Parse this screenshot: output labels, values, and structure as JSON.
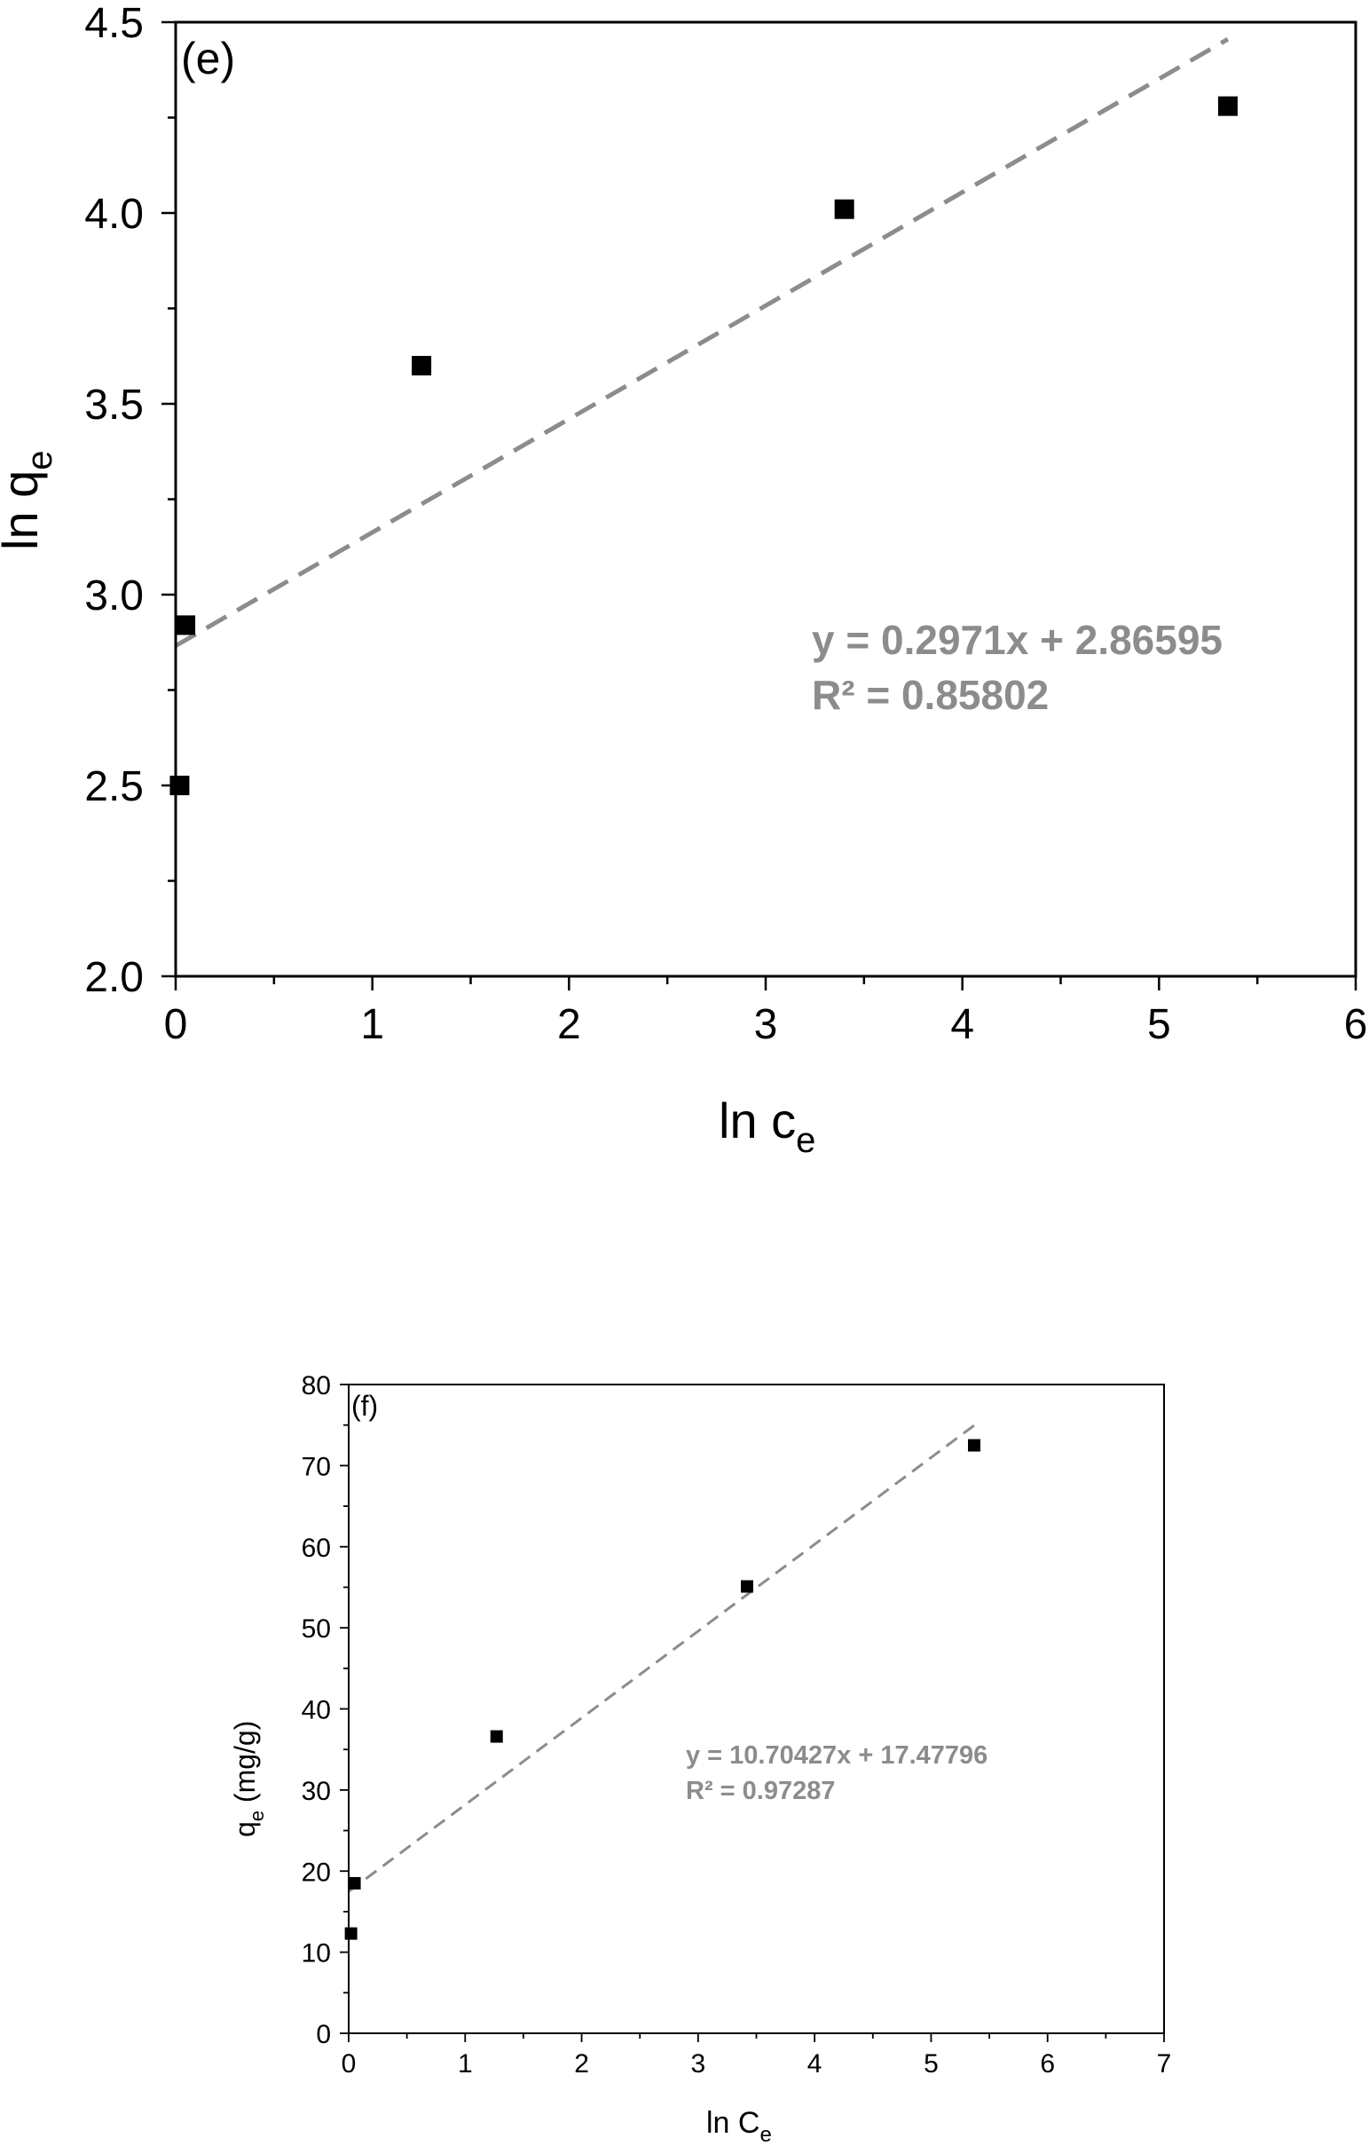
{
  "chart_data": [
    {
      "type": "scatter",
      "panel_label": "(e)",
      "xlabel_main": "ln c",
      "xlabel_sub": "e",
      "ylabel_main": "ln q",
      "ylabel_sub": "e",
      "xlim": [
        0,
        6
      ],
      "ylim": [
        2.0,
        4.5
      ],
      "x_ticks": [
        "0",
        "1",
        "2",
        "3",
        "4",
        "5",
        "6"
      ],
      "y_ticks": [
        "2.0",
        "2.5",
        "3.0",
        "3.5",
        "4.0",
        "4.5"
      ],
      "points": [
        {
          "x": 0.02,
          "y": 2.5
        },
        {
          "x": 0.05,
          "y": 2.92
        },
        {
          "x": 1.25,
          "y": 3.6
        },
        {
          "x": 3.4,
          "y": 4.01
        },
        {
          "x": 5.35,
          "y": 4.28
        }
      ],
      "fit": {
        "slope": 0.2971,
        "intercept": 2.86595,
        "x_range": [
          0,
          5.35
        ]
      },
      "equation": "y = 0.2971x + 2.86595",
      "r_squared": "R² = 0.85802",
      "fit_color": "#8c8c8c",
      "marker_color": "#000000"
    },
    {
      "type": "scatter",
      "panel_label": "(f)",
      "xlabel_main": "ln C",
      "xlabel_sub": "e",
      "ylabel_main": "q",
      "ylabel_sub": "e",
      "ylabel_suffix": " (mg/g)",
      "xlim": [
        0,
        7
      ],
      "ylim": [
        0,
        80
      ],
      "x_ticks": [
        "0",
        "1",
        "2",
        "3",
        "4",
        "5",
        "6",
        "7"
      ],
      "y_ticks": [
        "0",
        "10",
        "20",
        "30",
        "40",
        "50",
        "60",
        "70",
        "80"
      ],
      "points": [
        {
          "x": 0.02,
          "y": 12.3
        },
        {
          "x": 0.05,
          "y": 18.5
        },
        {
          "x": 1.27,
          "y": 36.6
        },
        {
          "x": 3.42,
          "y": 55.1
        },
        {
          "x": 5.37,
          "y": 72.5
        }
      ],
      "fit": {
        "slope": 10.70427,
        "intercept": 17.47796,
        "x_range": [
          0,
          5.37
        ]
      },
      "equation": "y = 10.70427x + 17.47796",
      "r_squared": "R² = 0.97287",
      "fit_color": "#8c8c8c",
      "marker_color": "#000000"
    }
  ]
}
